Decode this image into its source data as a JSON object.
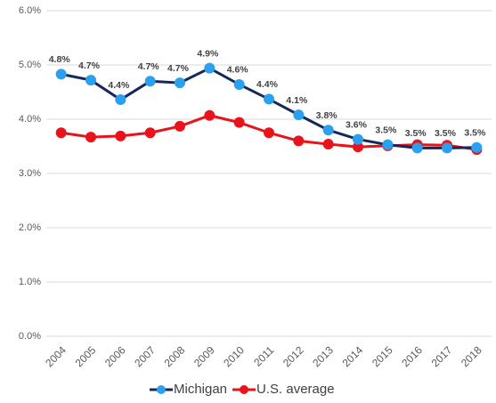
{
  "chart_data": {
    "type": "line",
    "categories": [
      "2004",
      "2005",
      "2006",
      "2007",
      "2008",
      "2009",
      "2010",
      "2011",
      "2012",
      "2013",
      "2014",
      "2015",
      "2016",
      "2017",
      "2018"
    ],
    "series": [
      {
        "name": "Michigan",
        "color": "#14285a",
        "marker_color": "#2aa0ef",
        "values": [
          4.83,
          4.72,
          4.36,
          4.7,
          4.67,
          4.94,
          4.64,
          4.37,
          4.08,
          3.8,
          3.63,
          3.53,
          3.47,
          3.47,
          3.48
        ],
        "value_labels": [
          "4.8%",
          "4.7%",
          "4.4%",
          "4.7%",
          "4.7%",
          "4.9%",
          "4.6%",
          "4.4%",
          "4.1%",
          "3.8%",
          "3.6%",
          "3.5%",
          "3.5%",
          "3.5%",
          "3.5%"
        ]
      },
      {
        "name": "U.S. average",
        "color": "#e8131b",
        "marker_color": "#e8131b",
        "values": [
          3.75,
          3.67,
          3.69,
          3.75,
          3.87,
          4.07,
          3.94,
          3.75,
          3.6,
          3.54,
          3.49,
          3.51,
          3.53,
          3.52,
          3.44
        ]
      }
    ],
    "ylim": [
      0,
      6
    ],
    "yticks": [
      {
        "value": 0,
        "label": "0.0%"
      },
      {
        "value": 1,
        "label": "1.0%"
      },
      {
        "value": 2,
        "label": "2.0%"
      },
      {
        "value": 3,
        "label": "3.0%"
      },
      {
        "value": 4,
        "label": "4.0%"
      },
      {
        "value": 5,
        "label": "5.0%"
      },
      {
        "value": 6,
        "label": "6.0%"
      }
    ],
    "grid": true,
    "legend": "bottom"
  }
}
